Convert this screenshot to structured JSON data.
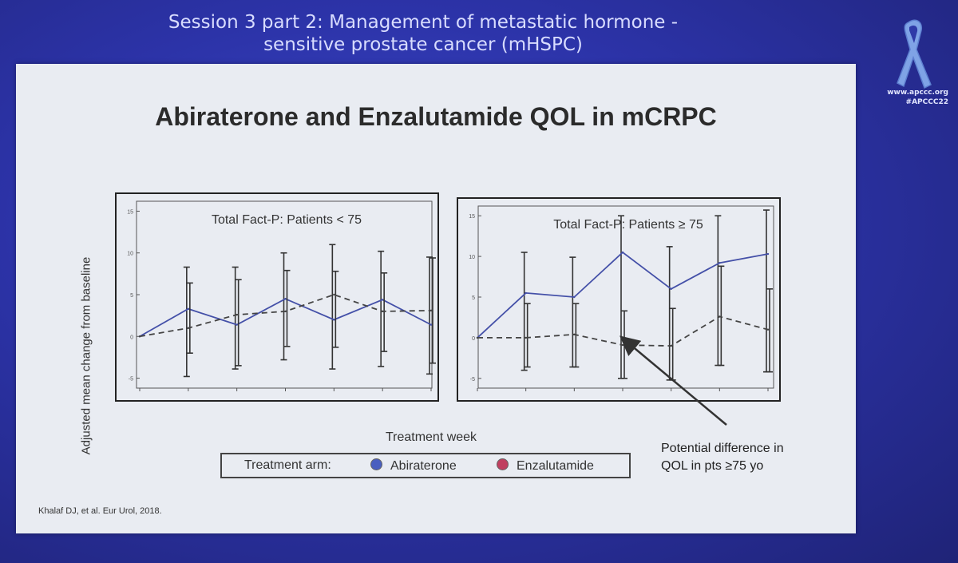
{
  "header": {
    "session_line1": "Session 3 part 2:  Management of metastatic hormone -",
    "session_line2": "sensitive prostate cancer (mHSPC)",
    "site_url": "www.apccc.org",
    "hashtag": "#APCCC22"
  },
  "slide": {
    "title": "Abiraterone and Enzalutamide QOL in mCRPC",
    "ylabel": "Adjusted mean change from baseline",
    "xlabel": "Treatment week",
    "legend": {
      "title": "Treatment arm:",
      "items": [
        "Abiraterone",
        "Enzalutamide"
      ]
    },
    "annotation_line1": "Potential difference in",
    "annotation_line2": "QOL in pts ≥75 yo",
    "citation": "Khalaf DJ, et al. Eur Urol, 2018."
  },
  "colors": {
    "abiraterone": "#4a5fc0",
    "enzalutamide": "#c04060",
    "line_solid": "#4450a8",
    "line_dashed": "#444444"
  },
  "chart_data": [
    {
      "type": "line",
      "title": "Total Fact-P: Patients < 75",
      "ylim": [
        -6,
        16
      ],
      "yticks": [
        "15",
        "10",
        "5",
        "0",
        "-5"
      ],
      "x": [
        0,
        1,
        2,
        3,
        4,
        5,
        6
      ],
      "series": [
        {
          "name": "Abiraterone",
          "style": "solid",
          "values": [
            0,
            3.3,
            1.4,
            4.5,
            2.0,
            4.4,
            1.4
          ],
          "error_low": [
            0,
            -4.8,
            -3.9,
            -2.8,
            -3.9,
            -3.6,
            -4.5
          ],
          "error_high": [
            0,
            8.3,
            8.3,
            10.0,
            11.0,
            10.2,
            9.5
          ]
        },
        {
          "name": "Enzalutamide",
          "style": "dashed",
          "values": [
            0,
            1.0,
            2.6,
            3.0,
            5.0,
            3.0,
            3.1
          ],
          "error_low": [
            0,
            -2.0,
            -3.5,
            -1.2,
            -1.3,
            -1.8,
            -3.2
          ],
          "error_high": [
            0,
            6.4,
            6.8,
            7.9,
            7.8,
            7.6,
            9.4
          ]
        }
      ]
    },
    {
      "type": "line",
      "title": "Total Fact-P: Patients ≥ 75",
      "ylim": [
        -6,
        16
      ],
      "yticks": [
        "15",
        "10",
        "5",
        "0",
        "-5"
      ],
      "x": [
        0,
        1,
        2,
        3,
        4,
        5,
        6
      ],
      "series": [
        {
          "name": "Abiraterone",
          "style": "solid",
          "values": [
            0,
            5.5,
            5.0,
            10.5,
            6.0,
            9.2,
            10.3
          ],
          "error_low": [
            0,
            -4.0,
            -3.6,
            -5.0,
            -5.2,
            -3.4,
            -4.2
          ],
          "error_high": [
            0,
            10.5,
            9.9,
            15.0,
            11.2,
            15.0,
            15.7
          ]
        },
        {
          "name": "Enzalutamide",
          "style": "dashed",
          "values": [
            0,
            0,
            0.4,
            -0.9,
            -1.0,
            2.6,
            1.0
          ],
          "error_low": [
            0,
            -3.6,
            -3.6,
            -5.0,
            -5.2,
            -3.4,
            -4.2
          ],
          "error_high": [
            0,
            4.2,
            4.2,
            3.3,
            3.6,
            8.8,
            6.0
          ]
        }
      ]
    }
  ]
}
